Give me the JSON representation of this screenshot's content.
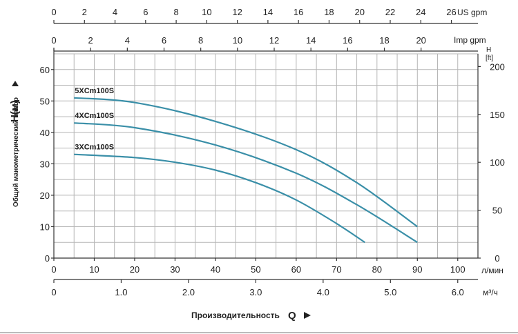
{
  "chart_data": {
    "type": "line",
    "title": "",
    "x": [
      5,
      10,
      20,
      30,
      40,
      50,
      60,
      70,
      80,
      90
    ],
    "xlim": [
      0,
      105
    ],
    "ylim": [
      0,
      65
    ],
    "grid": true,
    "series": [
      {
        "name": "5XCm100S",
        "color": "#3a8fa8",
        "points": [
          [
            5,
            51
          ],
          [
            20,
            49.5
          ],
          [
            40,
            43.5
          ],
          [
            60,
            34.5
          ],
          [
            75,
            24
          ],
          [
            90,
            10
          ]
        ]
      },
      {
        "name": "4XCm100S",
        "color": "#3a8fa8",
        "points": [
          [
            5,
            43
          ],
          [
            20,
            41.5
          ],
          [
            40,
            36
          ],
          [
            60,
            27
          ],
          [
            75,
            17
          ],
          [
            90,
            5
          ]
        ]
      },
      {
        "name": "3XCm100S",
        "color": "#3a8fa8",
        "points": [
          [
            5,
            33
          ],
          [
            20,
            32
          ],
          [
            30,
            30.5
          ],
          [
            40,
            28
          ],
          [
            50,
            24
          ],
          [
            60,
            18.5
          ],
          [
            70,
            11
          ],
          [
            77,
            5
          ]
        ]
      }
    ],
    "axes": {
      "us_gpm": {
        "label": "US gpm",
        "ticks": [
          "0",
          "2",
          "4",
          "6",
          "8",
          "10",
          "12",
          "14",
          "16",
          "18",
          "20",
          "22",
          "24",
          "26"
        ]
      },
      "imp_gpm": {
        "label": "Imp gpm",
        "ticks": [
          "0",
          "2",
          "4",
          "6",
          "8",
          "10",
          "12",
          "14",
          "16",
          "18",
          "20"
        ]
      },
      "head_m": {
        "label_small": "Общий манометрический напор",
        "label_big": "H(м)",
        "ticks": [
          "0",
          "10",
          "20",
          "30",
          "40",
          "50",
          "60"
        ]
      },
      "head_ft": {
        "label_top": "H",
        "label_bottom": "[ft]",
        "ticks": [
          "0",
          "50",
          "100",
          "150",
          "200"
        ]
      },
      "flow_lmin": {
        "label": "л/мин",
        "ticks": [
          "0",
          "10",
          "20",
          "30",
          "40",
          "50",
          "60",
          "70",
          "80",
          "90",
          "100"
        ]
      },
      "flow_m3h": {
        "label": "м³/ч",
        "ticks": [
          "0",
          "1.0",
          "2.0",
          "3.0",
          "4.0",
          "5.0",
          "6.0"
        ]
      }
    },
    "xlabel_small": "Производительность",
    "xlabel_big": "Q"
  }
}
